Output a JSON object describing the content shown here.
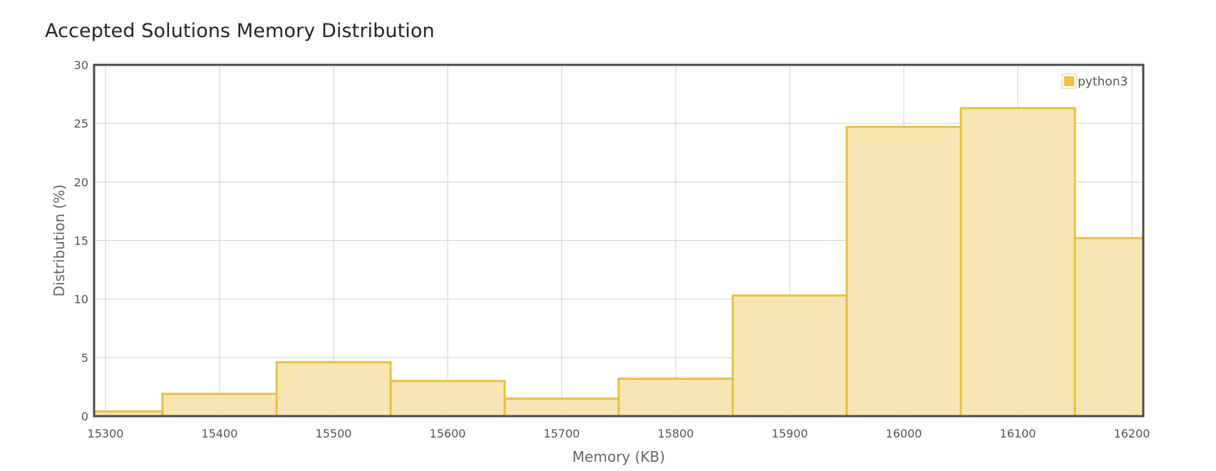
{
  "title": "Accepted Solutions Memory Distribution",
  "colors": {
    "bar_fill": "#f7e5b0",
    "bar_stroke": "#e8c13c",
    "legend_swatch": "#f0c040",
    "grid": "#d0d0d0",
    "frame": "#4a4a4a"
  },
  "chart_data": {
    "type": "bar",
    "title": "Accepted Solutions Memory Distribution",
    "xlabel": "Memory (KB)",
    "ylabel": "Distribution (%)",
    "xlim": [
      15290,
      16210
    ],
    "ylim": [
      0,
      30
    ],
    "x_ticks": [
      15300,
      15400,
      15500,
      15600,
      15700,
      15800,
      15900,
      16000,
      16100,
      16200
    ],
    "y_ticks": [
      0,
      5,
      10,
      15,
      20,
      25,
      30
    ],
    "grid": true,
    "legend_position": "top-right",
    "bin_width": 100,
    "series": [
      {
        "name": "python3",
        "bins": [
          {
            "from": 15250,
            "to": 15350,
            "value": 0.4
          },
          {
            "from": 15350,
            "to": 15450,
            "value": 1.9
          },
          {
            "from": 15450,
            "to": 15550,
            "value": 4.6
          },
          {
            "from": 15550,
            "to": 15650,
            "value": 3.0
          },
          {
            "from": 15650,
            "to": 15750,
            "value": 1.5
          },
          {
            "from": 15750,
            "to": 15850,
            "value": 3.2
          },
          {
            "from": 15850,
            "to": 15950,
            "value": 10.3
          },
          {
            "from": 15950,
            "to": 16050,
            "value": 24.7
          },
          {
            "from": 16050,
            "to": 16150,
            "value": 26.3
          },
          {
            "from": 16150,
            "to": 16250,
            "value": 15.2
          }
        ]
      }
    ]
  }
}
